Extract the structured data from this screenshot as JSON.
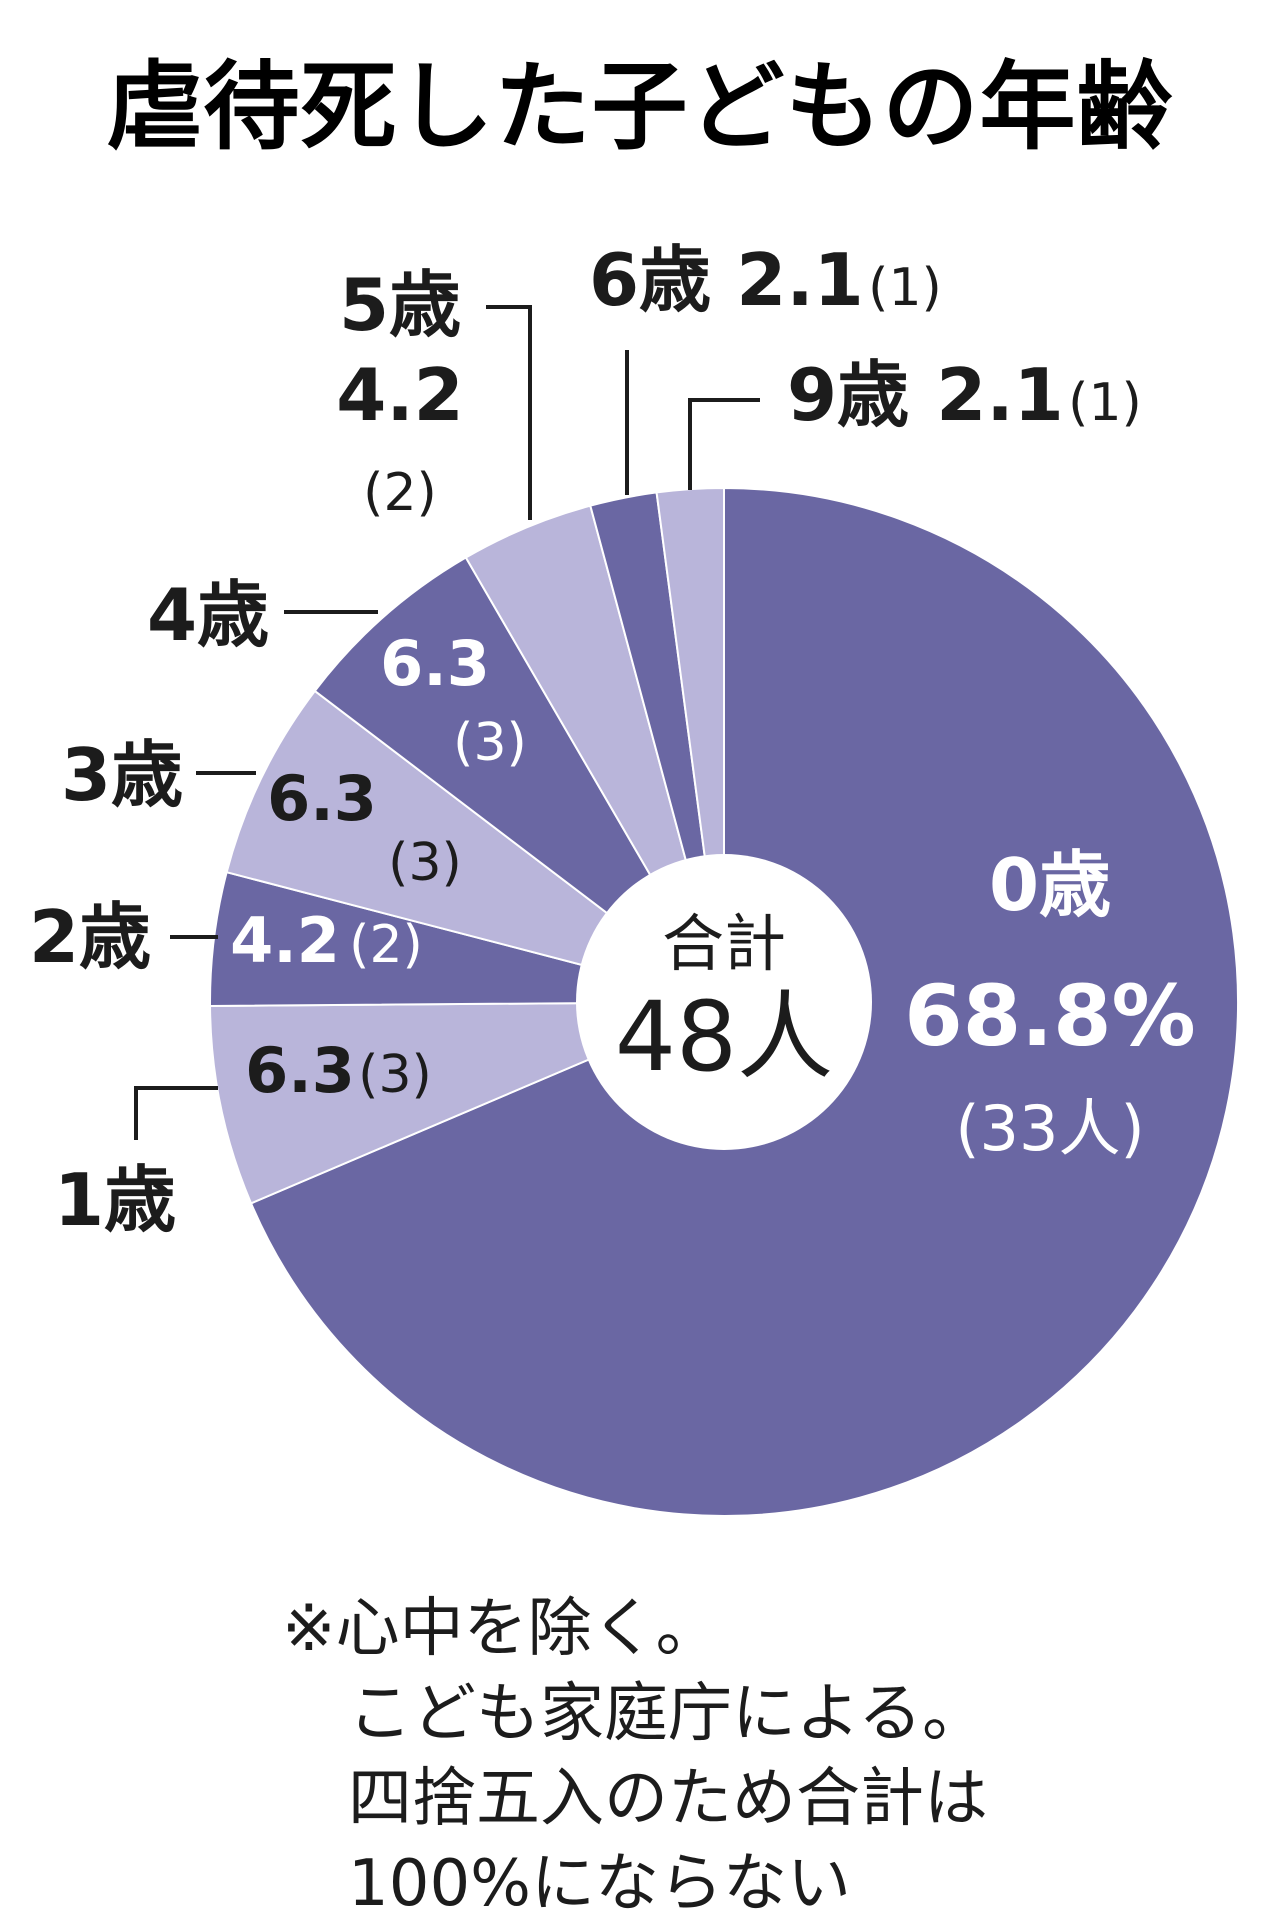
{
  "chart_data": {
    "type": "pie",
    "title": "虐待死した子どもの年齢",
    "unit": "%",
    "slices": [
      {
        "label": "0歳",
        "value": 68.8,
        "value_text": "68.8%",
        "count_text": "(33人)",
        "color": "#6a67a3"
      },
      {
        "label": "1歳",
        "value": 6.3,
        "value_text": "6.3",
        "count_text": "(3)",
        "color": "#b9b5da"
      },
      {
        "label": "2歳",
        "value": 4.2,
        "value_text": "4.2",
        "count_text": "(2)",
        "color": "#6a67a3"
      },
      {
        "label": "3歳",
        "value": 6.3,
        "value_text": "6.3",
        "count_text": "(3)",
        "color": "#b9b5da"
      },
      {
        "label": "4歳",
        "value": 6.3,
        "value_text": "6.3",
        "count_text": "(3)",
        "color": "#6a67a3"
      },
      {
        "label": "5歳",
        "value": 4.2,
        "value_text": "4.2",
        "count_text": "(2)",
        "color": "#b9b5da"
      },
      {
        "label": "6歳",
        "value": 2.1,
        "value_text": "2.1",
        "count_text": "(1)",
        "color": "#6a67a3"
      },
      {
        "label": "9歳",
        "value": 2.1,
        "value_text": "2.1",
        "count_text": "(1)",
        "color": "#b9b5da"
      }
    ],
    "center_label": "合計",
    "center_value": "48人",
    "notes": [
      "※心中を除く。",
      "こども家庭庁による。",
      "四捨五入のため合計は",
      "100%にならない"
    ]
  }
}
